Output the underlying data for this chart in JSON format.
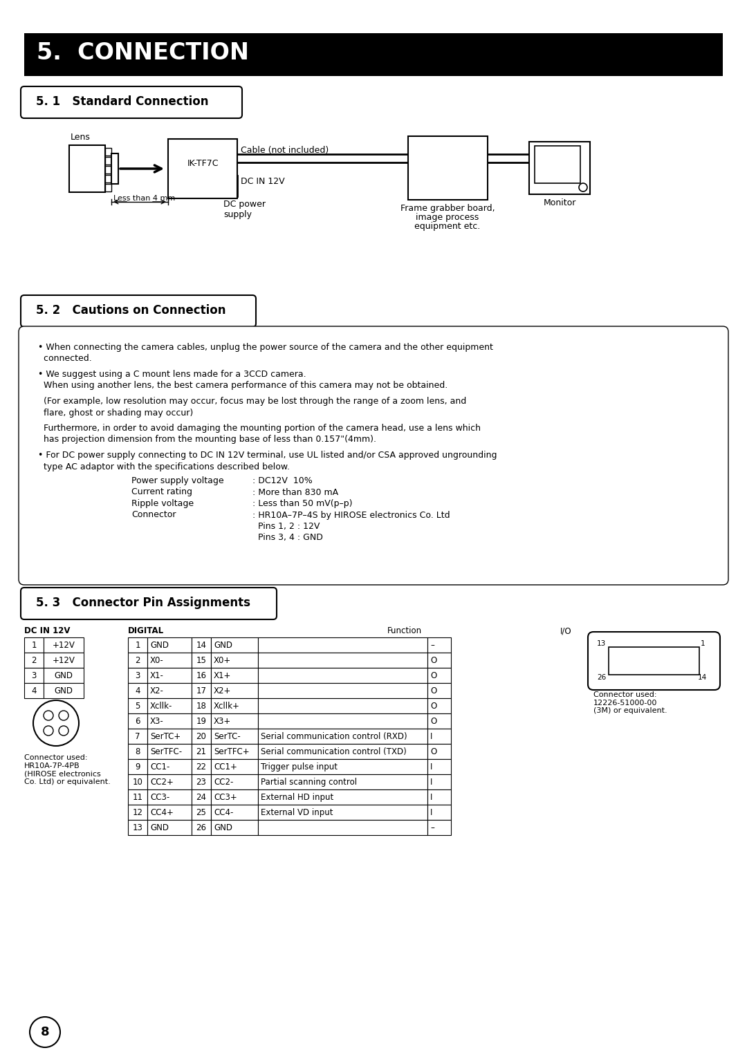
{
  "page_bg": "#ffffff",
  "title_bg": "#000000",
  "title_text": "5.  CONNECTION",
  "title_text_color": "#ffffff",
  "section1_title": "5. 1   Standard Connection",
  "section2_title": "5. 2   Cautions on Connection",
  "section3_title": "5. 3   Connector Pin Assignments",
  "dc_table": [
    [
      "1",
      "+12V"
    ],
    [
      "2",
      "+12V"
    ],
    [
      "3",
      "GND"
    ],
    [
      "4",
      "GND"
    ]
  ],
  "digital_table": [
    [
      "1",
      "GND",
      "14",
      "GND",
      "",
      "–"
    ],
    [
      "2",
      "X0-",
      "15",
      "X0+",
      "",
      "O"
    ],
    [
      "3",
      "X1-",
      "16",
      "X1+",
      "",
      "O"
    ],
    [
      "4",
      "X2-",
      "17",
      "X2+",
      "",
      "O"
    ],
    [
      "5",
      "Xcllk-",
      "18",
      "Xcllk+",
      "",
      "O"
    ],
    [
      "6",
      "X3-",
      "19",
      "X3+",
      "",
      "O"
    ],
    [
      "7",
      "SerTC+",
      "20",
      "SerTC-",
      "Serial communication control (RXD)",
      "I"
    ],
    [
      "8",
      "SerTFC-",
      "21",
      "SerTFC+",
      "Serial communication control (TXD)",
      "O"
    ],
    [
      "9",
      "CC1-",
      "22",
      "CC1+",
      "Trigger pulse input",
      "I"
    ],
    [
      "10",
      "CC2+",
      "23",
      "CC2-",
      "Partial scanning control",
      "I"
    ],
    [
      "11",
      "CC3-",
      "24",
      "CC3+",
      "External HD input",
      "I"
    ],
    [
      "12",
      "CC4+",
      "25",
      "CC4-",
      "External VD input",
      "I"
    ],
    [
      "13",
      "GND",
      "26",
      "GND",
      "",
      "–"
    ]
  ],
  "dc_connector_note": "Connector used:\nHR10A-7P-4PB\n(HIROSE electronics\nCo. Ltd) or equivalent.",
  "digital_connector_note": "Connector used:\n12226-51000-00\n(3M) or equivalent.",
  "page_number": "8",
  "caution_lines": [
    [
      "• When connecting the camera cables, unplug the power source of the camera and the other equipment",
      false
    ],
    [
      "  connected.",
      false
    ],
    [
      "",
      false
    ],
    [
      "• We suggest using a C mount lens made for a 3CCD camera.",
      false
    ],
    [
      "  When using another lens, the best camera performance of this camera may not be obtained.",
      false
    ],
    [
      "",
      false
    ],
    [
      "  (For example, low resolution may occur, focus may be lost through the range of a zoom lens, and",
      false
    ],
    [
      "  flare, ghost or shading may occur)",
      false
    ],
    [
      "",
      false
    ],
    [
      "  Furthermore, in order to avoid damaging the mounting portion of the camera head, use a lens which",
      false
    ],
    [
      "  has projection dimension from the mounting base of less than 0.157\"(4mm).",
      false
    ],
    [
      "",
      false
    ],
    [
      "• For DC power supply connecting to DC IN 12V terminal, use UL listed and/or CSA approved ungrounding",
      false
    ],
    [
      "  type AC adaptor with the specifications described below.",
      false
    ]
  ],
  "spec_lines": [
    [
      "Power supply voltage",
      ": DC12V  10%"
    ],
    [
      "Current rating",
      ": More than 830 mA"
    ],
    [
      "Ripple voltage",
      ": Less than 50 mV(p–p)"
    ],
    [
      "Connector",
      ": HR10A–7P–4S by HIROSE electronics Co. Ltd"
    ],
    [
      "",
      "  Pins 1, 2 : 12V"
    ],
    [
      "",
      "  Pins 3, 4 : GND"
    ]
  ]
}
